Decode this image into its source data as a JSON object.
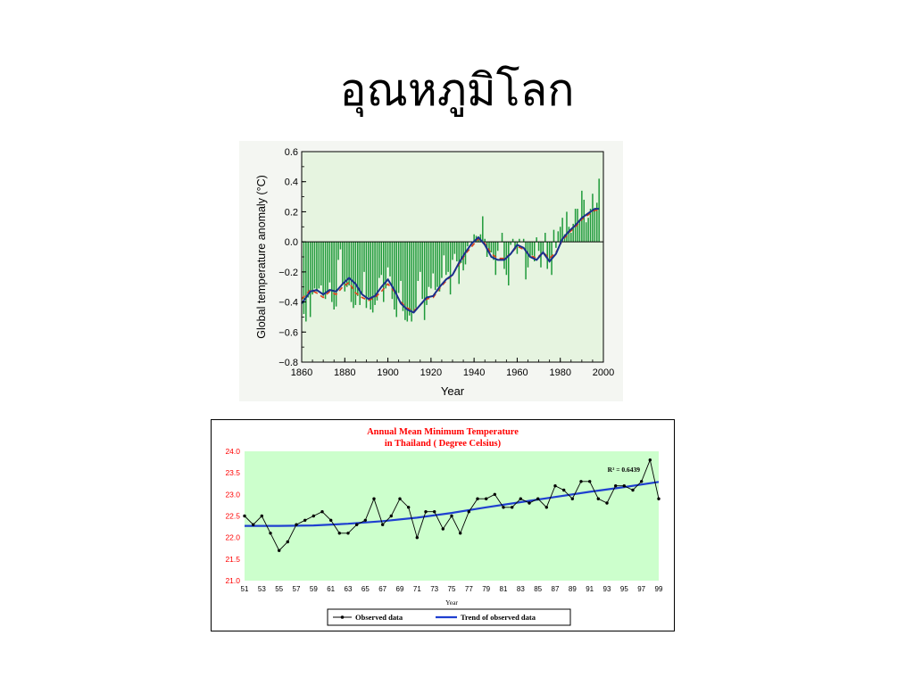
{
  "slide": {
    "title": "อุณหภูมิโลก"
  },
  "colors": {
    "global_plot_bg": "#e6f4e0",
    "global_bar": "#1f9a3a",
    "global_smooth": "#1a2f8c",
    "global_dashed": "#e0401a",
    "thai_plot_bg": "#ccffcc",
    "thai_title": "#ff0000",
    "thai_tick_y": "#ff0000",
    "thai_observed": "#000000",
    "thai_trend": "#1f3fd0"
  },
  "chart_data": [
    {
      "type": "bar",
      "ylabel": "Global temperature anomaly (°C)",
      "xlabel": "Year",
      "xlim": [
        1860,
        2000
      ],
      "ylim": [
        -0.8,
        0.6
      ],
      "x_ticks": [
        "1860",
        "1880",
        "1900",
        "1920",
        "1940",
        "1960",
        "1980",
        "2000"
      ],
      "y_ticks": [
        "0.6",
        "0.4",
        "0.2",
        "0.0",
        "−0.2",
        "−0.4",
        "−0.6",
        "−0.8"
      ],
      "grid": false,
      "x": [
        1861,
        1862,
        1863,
        1864,
        1865,
        1866,
        1867,
        1868,
        1869,
        1870,
        1871,
        1872,
        1873,
        1874,
        1875,
        1876,
        1877,
        1878,
        1879,
        1880,
        1881,
        1882,
        1883,
        1884,
        1885,
        1886,
        1887,
        1888,
        1889,
        1890,
        1891,
        1892,
        1893,
        1894,
        1895,
        1896,
        1897,
        1898,
        1899,
        1900,
        1901,
        1902,
        1903,
        1904,
        1905,
        1906,
        1907,
        1908,
        1909,
        1910,
        1911,
        1912,
        1913,
        1914,
        1915,
        1916,
        1917,
        1918,
        1919,
        1920,
        1921,
        1922,
        1923,
        1924,
        1925,
        1926,
        1927,
        1928,
        1929,
        1930,
        1931,
        1932,
        1933,
        1934,
        1935,
        1936,
        1937,
        1938,
        1939,
        1940,
        1941,
        1942,
        1943,
        1944,
        1945,
        1946,
        1947,
        1948,
        1949,
        1950,
        1951,
        1952,
        1953,
        1954,
        1955,
        1956,
        1957,
        1958,
        1959,
        1960,
        1961,
        1962,
        1963,
        1964,
        1965,
        1966,
        1967,
        1968,
        1969,
        1970,
        1971,
        1972,
        1973,
        1974,
        1975,
        1976,
        1977,
        1978,
        1979,
        1980,
        1981,
        1982,
        1983,
        1984,
        1985,
        1986,
        1987,
        1988,
        1989,
        1990,
        1991,
        1992,
        1993,
        1994,
        1995,
        1996,
        1997,
        1998
      ],
      "values": [
        -0.48,
        -0.53,
        -0.37,
        -0.5,
        -0.35,
        -0.31,
        -0.33,
        -0.31,
        -0.29,
        -0.36,
        -0.38,
        -0.33,
        -0.27,
        -0.4,
        -0.45,
        -0.43,
        -0.12,
        -0.05,
        -0.28,
        -0.33,
        -0.3,
        -0.29,
        -0.4,
        -0.44,
        -0.42,
        -0.36,
        -0.42,
        -0.35,
        -0.2,
        -0.44,
        -0.37,
        -0.45,
        -0.47,
        -0.42,
        -0.39,
        -0.24,
        -0.22,
        -0.4,
        -0.31,
        -0.17,
        -0.23,
        -0.38,
        -0.45,
        -0.5,
        -0.34,
        -0.26,
        -0.46,
        -0.52,
        -0.53,
        -0.49,
        -0.53,
        -0.47,
        -0.44,
        -0.26,
        -0.2,
        -0.38,
        -0.52,
        -0.42,
        -0.3,
        -0.31,
        -0.21,
        -0.32,
        -0.3,
        -0.33,
        -0.24,
        -0.09,
        -0.22,
        -0.2,
        -0.35,
        -0.12,
        -0.08,
        -0.13,
        -0.28,
        -0.14,
        -0.19,
        -0.15,
        -0.03,
        0.0,
        -0.02,
        0.05,
        0.04,
        0.03,
        0.05,
        0.17,
        0.02,
        -0.1,
        -0.06,
        -0.07,
        -0.12,
        -0.22,
        -0.06,
        0.0,
        0.06,
        -0.18,
        -0.22,
        -0.29,
        -0.02,
        0.02,
        -0.04,
        -0.08,
        0.02,
        0.0,
        0.02,
        -0.25,
        -0.17,
        -0.1,
        -0.09,
        -0.13,
        0.03,
        -0.06,
        -0.17,
        -0.08,
        0.06,
        -0.18,
        -0.12,
        -0.22,
        0.08,
        -0.04,
        0.07,
        0.1,
        0.16,
        0.05,
        0.2,
        0.1,
        0.06,
        0.12,
        0.22,
        0.22,
        0.14,
        0.34,
        0.28,
        0.13,
        0.16,
        0.22,
        0.32,
        0.21,
        0.26,
        0.42
      ],
      "smooth": {
        "x": [
          1860,
          1864,
          1867,
          1870,
          1873,
          1876,
          1879,
          1882,
          1885,
          1888,
          1891,
          1894,
          1897,
          1900,
          1903,
          1906,
          1909,
          1912,
          1915,
          1918,
          1921,
          1924,
          1927,
          1930,
          1933,
          1936,
          1939,
          1942,
          1945,
          1948,
          1951,
          1954,
          1957,
          1960,
          1963,
          1966,
          1969,
          1972,
          1975,
          1978,
          1981,
          1984,
          1987,
          1990,
          1993,
          1996,
          1998
        ],
        "values": [
          -0.41,
          -0.33,
          -0.32,
          -0.35,
          -0.32,
          -0.33,
          -0.28,
          -0.24,
          -0.28,
          -0.35,
          -0.38,
          -0.36,
          -0.3,
          -0.25,
          -0.32,
          -0.41,
          -0.45,
          -0.47,
          -0.42,
          -0.37,
          -0.36,
          -0.3,
          -0.25,
          -0.22,
          -0.14,
          -0.07,
          -0.01,
          0.03,
          -0.02,
          -0.1,
          -0.12,
          -0.12,
          -0.08,
          -0.02,
          -0.04,
          -0.1,
          -0.12,
          -0.07,
          -0.13,
          -0.08,
          0.02,
          0.07,
          0.11,
          0.16,
          0.19,
          0.22,
          0.22
        ]
      },
      "dashed": {
        "x": [
          1860,
          1864,
          1867,
          1870,
          1873,
          1876,
          1879,
          1882,
          1885,
          1888,
          1891,
          1894,
          1897,
          1900,
          1903,
          1906,
          1909,
          1912,
          1915,
          1918,
          1921,
          1924,
          1927,
          1930,
          1933,
          1936,
          1939,
          1942,
          1945,
          1948,
          1951,
          1954,
          1957,
          1960,
          1963,
          1966,
          1969,
          1972,
          1975,
          1978,
          1981,
          1984,
          1987,
          1990,
          1993,
          1996,
          1998
        ],
        "values": [
          -0.38,
          -0.32,
          -0.34,
          -0.37,
          -0.33,
          -0.35,
          -0.3,
          -0.27,
          -0.34,
          -0.37,
          -0.39,
          -0.37,
          -0.33,
          -0.28,
          -0.33,
          -0.4,
          -0.44,
          -0.46,
          -0.42,
          -0.38,
          -0.37,
          -0.31,
          -0.26,
          -0.22,
          -0.15,
          -0.08,
          -0.03,
          0.02,
          -0.01,
          -0.08,
          -0.11,
          -0.11,
          -0.08,
          -0.03,
          -0.05,
          -0.09,
          -0.11,
          -0.07,
          -0.11,
          -0.07,
          0.01,
          0.06,
          0.1,
          0.15,
          0.18,
          0.21,
          0.21
        ]
      }
    },
    {
      "type": "line",
      "title": "Annual Mean Minimum Temperature",
      "subtitle": "in Thailand ( Degree Celsius)",
      "xlabel": "Year",
      "ylim": [
        21.0,
        24.0
      ],
      "y_ticks": [
        "24.0",
        "23.5",
        "23.0",
        "22.5",
        "22.0",
        "21.5",
        "21.0"
      ],
      "x_ticks": [
        "51",
        "53",
        "55",
        "57",
        "59",
        "61",
        "63",
        "65",
        "67",
        "69",
        "71",
        "73",
        "75",
        "77",
        "79",
        "81",
        "83",
        "85",
        "87",
        "89",
        "91",
        "93",
        "95",
        "97",
        "99"
      ],
      "annotation": "R² = 0.6439",
      "legend": [
        "Observed data",
        "Trend of observed data"
      ],
      "legend_position": "bottom",
      "grid": false,
      "x": [
        51,
        52,
        53,
        54,
        55,
        56,
        57,
        58,
        59,
        60,
        61,
        62,
        63,
        64,
        65,
        66,
        67,
        68,
        69,
        70,
        71,
        72,
        73,
        74,
        75,
        76,
        77,
        78,
        79,
        80,
        81,
        82,
        83,
        84,
        85,
        86,
        87,
        88,
        89,
        90,
        91,
        92,
        93,
        94,
        95,
        96,
        97,
        98,
        99
      ],
      "series": [
        {
          "name": "Observed data",
          "values": [
            22.5,
            22.3,
            22.5,
            22.1,
            21.7,
            21.9,
            22.3,
            22.4,
            22.5,
            22.6,
            22.4,
            22.1,
            22.1,
            22.3,
            22.4,
            22.9,
            22.3,
            22.5,
            22.9,
            22.7,
            22.0,
            22.6,
            22.6,
            22.2,
            22.5,
            22.1,
            22.6,
            22.9,
            22.9,
            23.0,
            22.7,
            22.7,
            22.9,
            22.8,
            22.9,
            22.7,
            23.2,
            23.1,
            22.9,
            23.3,
            23.3,
            22.9,
            22.8,
            23.2,
            23.2,
            23.1,
            23.3,
            23.8,
            22.9
          ]
        },
        {
          "name": "Trend of observed data",
          "x": [
            51,
            55,
            59,
            63,
            67,
            71,
            75,
            79,
            83,
            87,
            91,
            95,
            99
          ],
          "values": [
            22.27,
            22.27,
            22.28,
            22.32,
            22.38,
            22.46,
            22.57,
            22.7,
            22.82,
            22.94,
            23.06,
            23.17,
            23.29
          ]
        }
      ]
    }
  ]
}
